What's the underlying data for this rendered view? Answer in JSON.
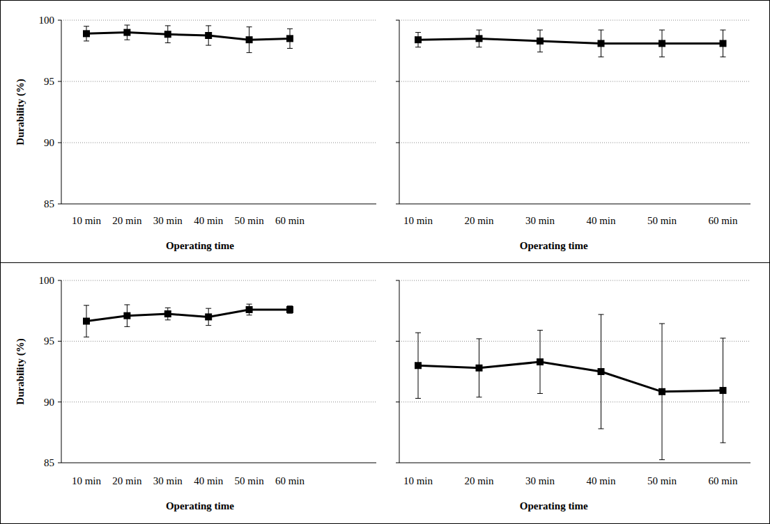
{
  "chart_data": [
    {
      "type": "line",
      "y_label": "Durability (%)",
      "x_label": "Operating time",
      "categories": [
        "10 min",
        "20 min",
        "30 min",
        "40 min",
        "50 min",
        "60 min"
      ],
      "values": [
        98.9,
        99.0,
        98.85,
        98.75,
        98.4,
        98.5
      ],
      "errors": [
        0.6,
        0.6,
        0.7,
        0.8,
        1.05,
        0.8
      ],
      "color": "#000000",
      "marker": "square",
      "ylim": [
        85,
        100
      ],
      "yticks": [
        85,
        90,
        95,
        100
      ],
      "grid": true,
      "tick_labels": true
    },
    {
      "type": "line",
      "x_label": "Operating time",
      "categories": [
        "10 min",
        "20 min",
        "30 min",
        "40 min",
        "50 min",
        "60 min"
      ],
      "values": [
        98.4,
        98.5,
        98.3,
        98.1,
        98.1,
        98.1
      ],
      "errors": [
        0.6,
        0.7,
        0.9,
        1.1,
        1.1,
        1.1
      ],
      "color": "#000000",
      "marker": "square",
      "ylim": [
        85,
        100
      ],
      "yticks": [
        85,
        90,
        95,
        100
      ],
      "grid": true,
      "tick_labels": "x"
    },
    {
      "type": "line",
      "y_label": "Durability (%)",
      "x_label": "Operating time",
      "categories": [
        "10 min",
        "20 min",
        "30 min",
        "40 min",
        "50 min",
        "60 min"
      ],
      "values": [
        96.65,
        97.1,
        97.25,
        97.0,
        97.6,
        97.6
      ],
      "errors": [
        1.3,
        0.9,
        0.5,
        0.7,
        0.45,
        0.3
      ],
      "color": "#000000",
      "marker": "square",
      "ylim": [
        85,
        100
      ],
      "yticks": [
        85,
        90,
        95,
        100
      ],
      "grid": true,
      "tick_labels": true
    },
    {
      "type": "line",
      "x_label": "Operating time",
      "categories": [
        "10 min",
        "20 min",
        "30 min",
        "40 min",
        "50 min",
        "60 min"
      ],
      "values": [
        93.0,
        92.8,
        93.3,
        92.5,
        90.85,
        90.95
      ],
      "errors": [
        2.7,
        2.4,
        2.6,
        4.7,
        5.6,
        4.3
      ],
      "color": "#000000",
      "marker": "square",
      "ylim": [
        85,
        100
      ],
      "yticks": [
        85,
        90,
        95,
        100
      ],
      "grid": true,
      "tick_labels": "x"
    }
  ]
}
